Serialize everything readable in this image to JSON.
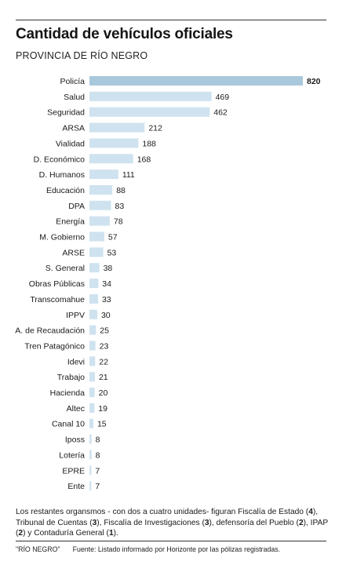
{
  "header": {
    "title": "Cantidad de vehículos oficiales",
    "subtitle": "PROVINCIA DE RÍO NEGRO"
  },
  "colors": {
    "bar": "#cfe2ef",
    "bar_highlight": "#a9c8dc",
    "text": "#1a1a1a"
  },
  "chart_data": {
    "type": "bar",
    "orientation": "horizontal",
    "categories": [
      "Policía",
      "Salud",
      "Seguridad",
      "ARSA",
      "Vialidad",
      "D. Económico",
      "D. Humanos",
      "Educación",
      "DPA",
      "Energía",
      "M. Gobierno",
      "ARSE",
      "S. General",
      "Obras Públicas",
      "Transcomahue",
      "IPPV",
      "A. de Recaudación",
      "Tren Patagónico",
      "Idevi",
      "Trabajo",
      "Hacienda",
      "Altec",
      "Canal 10",
      "Iposs",
      "Lotería",
      "EPRE",
      "Ente"
    ],
    "values": [
      820,
      469,
      462,
      212,
      188,
      168,
      111,
      88,
      83,
      78,
      57,
      53,
      38,
      34,
      33,
      30,
      25,
      23,
      22,
      21,
      20,
      19,
      15,
      8,
      8,
      7,
      7
    ],
    "value_labels": [
      "820",
      "469",
      "462",
      "212",
      "188",
      "168",
      "111",
      "88",
      "83",
      "78",
      "57",
      "53",
      "38",
      "34",
      "33",
      "30",
      "25",
      "23",
      "22",
      "21",
      "20",
      "19",
      "15",
      "8",
      "8",
      "7",
      "7"
    ],
    "highlight_index": 0,
    "title": "Cantidad de vehículos oficiales",
    "xlim": [
      0,
      820
    ],
    "grid": false,
    "legend": "none"
  },
  "note": {
    "part1": "Los restantes organsmos - con dos a cuatro unidades- figuran Fiscalía de Estado (",
    "n1": "4",
    "part2": "), Tribunal de Cuentas (",
    "n2": "3",
    "part3": "), Fiscalía de Investigaciones (",
    "n3": "3",
    "part4": "), defensoría del Pueblo (",
    "n4": "2",
    "part5": "), IPAP (",
    "n5": "2",
    "part6": ") y Contaduría General (",
    "n6": "1",
    "part7": ")."
  },
  "footer": {
    "brand": "\"RÍO NEGRO\"",
    "source": "Fuente: Listado informado por Horizonte por las pólizas registradas."
  }
}
